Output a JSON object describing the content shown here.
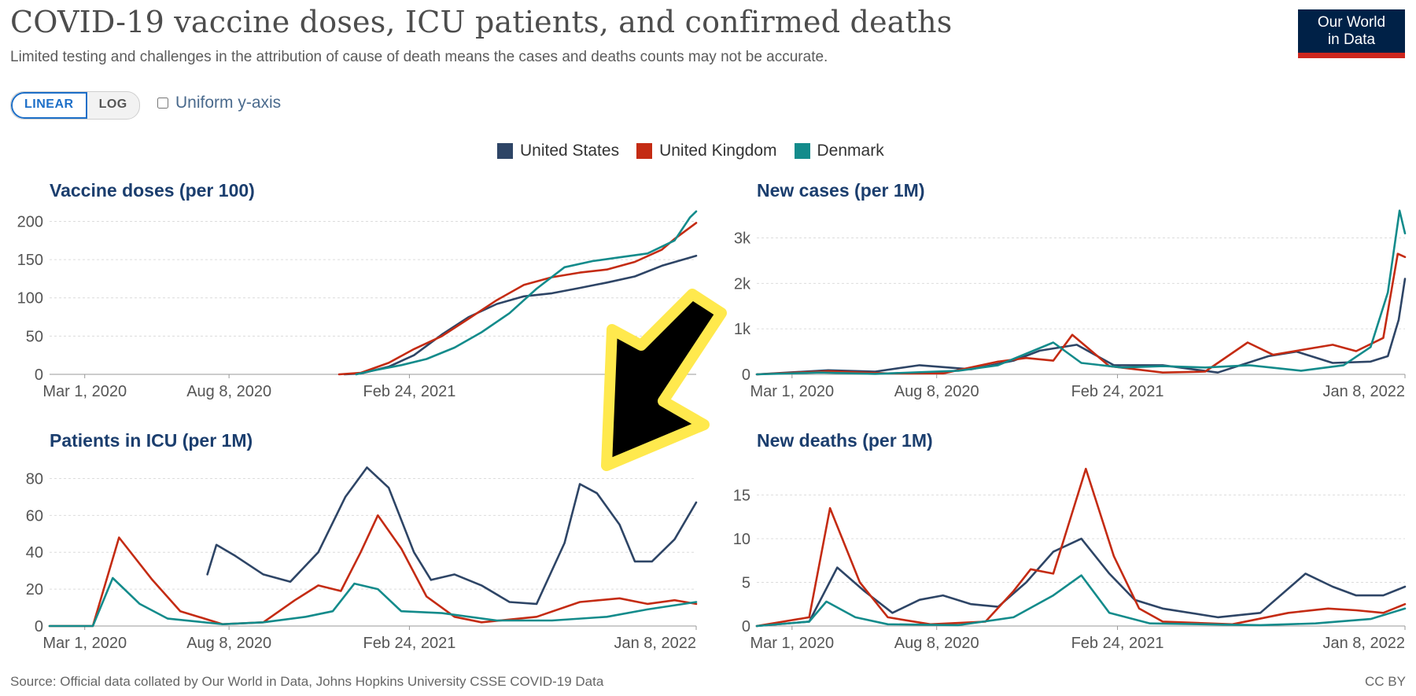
{
  "header": {
    "title": "COVID-19 vaccine doses, ICU patients, and confirmed deaths",
    "subtitle": "Limited testing and challenges in the attribution of cause of death means the cases and deaths counts may not be accurate.",
    "logo_line1": "Our World",
    "logo_line2": "in Data"
  },
  "controls": {
    "linear_label": "LINEAR",
    "log_label": "LOG",
    "uniform_label": "Uniform y-axis"
  },
  "legend": [
    {
      "name": "United States",
      "color": "#2e4566"
    },
    {
      "name": "United Kingdom",
      "color": "#c42b13"
    },
    {
      "name": "Denmark",
      "color": "#138b8b"
    }
  ],
  "footer": {
    "source": "Source: Official data collated by Our World in Data, Johns Hopkins University CSSE COVID-19 Data",
    "license": "CC BY"
  },
  "chart_data": [
    {
      "type": "line",
      "title": "Vaccine doses (per 100)",
      "xlabel": "",
      "ylabel": "",
      "x_ticks": [
        "Mar 1, 2020",
        "Aug 8, 2020",
        "Feb 24, 2021"
      ],
      "x_range": [
        "Jan 22, 2020",
        "Jan 8, 2022"
      ],
      "y_ticks": [
        "0",
        "50",
        "100",
        "150",
        "200"
      ],
      "ylim": [
        0,
        220
      ],
      "grid": true,
      "series": [
        {
          "name": "United States",
          "x": [
            "Dec 14, 2020",
            "Jan 1, 2021",
            "Feb 1, 2021",
            "Mar 1, 2021",
            "Apr 1, 2021",
            "May 1, 2021",
            "Jun 1, 2021",
            "Jul 1, 2021",
            "Aug 1, 2021",
            "Sep 1, 2021",
            "Oct 1, 2021",
            "Nov 1, 2021",
            "Dec 1, 2021",
            "Jan 8, 2022"
          ],
          "values": [
            0,
            1,
            10,
            25,
            52,
            75,
            92,
            102,
            106,
            113,
            120,
            128,
            142,
            155
          ]
        },
        {
          "name": "United Kingdom",
          "x": [
            "Dec 8, 2020",
            "Jan 1, 2021",
            "Feb 1, 2021",
            "Mar 1, 2021",
            "Apr 1, 2021",
            "May 1, 2021",
            "Jun 1, 2021",
            "Jul 1, 2021",
            "Aug 1, 2021",
            "Sep 1, 2021",
            "Oct 1, 2021",
            "Nov 1, 2021",
            "Dec 1, 2021",
            "Dec 15, 2021",
            "Jan 8, 2022"
          ],
          "values": [
            0,
            2,
            15,
            33,
            50,
            73,
            97,
            117,
            127,
            133,
            137,
            147,
            163,
            177,
            198
          ]
        },
        {
          "name": "Denmark",
          "x": [
            "Dec 27, 2020",
            "Jan 15, 2021",
            "Feb 15, 2021",
            "Mar 15, 2021",
            "Apr 15, 2021",
            "May 15, 2021",
            "Jun 15, 2021",
            "Jul 15, 2021",
            "Aug 15, 2021",
            "Sep 15, 2021",
            "Oct 15, 2021",
            "Nov 15, 2021",
            "Dec 15, 2021",
            "Jan 1, 2022",
            "Jan 8, 2022"
          ],
          "values": [
            0,
            5,
            12,
            20,
            35,
            55,
            80,
            112,
            140,
            148,
            153,
            158,
            175,
            205,
            213
          ]
        }
      ]
    },
    {
      "type": "line",
      "title": "New cases (per 1M)",
      "xlabel": "",
      "ylabel": "",
      "x_ticks": [
        "Mar 1, 2020",
        "Aug 8, 2020",
        "Feb 24, 2021",
        "Jan 8, 2022"
      ],
      "x_range": [
        "Jan 22, 2020",
        "Jan 8, 2022"
      ],
      "y_ticks": [
        "0",
        "1k",
        "2k",
        "3k"
      ],
      "ylim": [
        0,
        3700
      ],
      "grid": true,
      "series": [
        {
          "name": "United States",
          "x": [
            "Jan 22, 2020",
            "Apr 10, 2020",
            "Jun 1, 2020",
            "Jul 20, 2020",
            "Sep 15, 2020",
            "Nov 1, 2020",
            "Nov 30, 2020",
            "Jan 10, 2021",
            "Feb 20, 2021",
            "Apr 15, 2021",
            "Jun 15, 2021",
            "Aug 10, 2021",
            "Sep 10, 2021",
            "Oct 20, 2021",
            "Dec 1, 2021",
            "Dec 20, 2021",
            "Jan 1, 2022",
            "Jan 8, 2022"
          ],
          "values": [
            0,
            90,
            60,
            200,
            110,
            300,
            520,
            650,
            200,
            200,
            40,
            400,
            500,
            250,
            280,
            400,
            1200,
            2100
          ]
        },
        {
          "name": "United Kingdom",
          "x": [
            "Jan 22, 2020",
            "Apr 10, 2020",
            "Jun 15, 2020",
            "Aug 15, 2020",
            "Oct 15, 2020",
            "Nov 15, 2020",
            "Dec 15, 2020",
            "Jan 5, 2021",
            "Feb 15, 2021",
            "Apr 15, 2021",
            "Jun 1, 2021",
            "Jul 18, 2021",
            "Aug 15, 2021",
            "Oct 20, 2021",
            "Nov 15, 2021",
            "Dec 15, 2021",
            "Dec 31, 2021",
            "Jan 8, 2022"
          ],
          "values": [
            0,
            70,
            20,
            20,
            280,
            360,
            300,
            870,
            180,
            40,
            60,
            700,
            430,
            650,
            510,
            800,
            2650,
            2580
          ]
        },
        {
          "name": "Denmark",
          "x": [
            "Jan 22, 2020",
            "Apr 1, 2020",
            "Jun 1, 2020",
            "Sep 1, 2020",
            "Oct 15, 2020",
            "Dec 15, 2020",
            "Jan 15, 2021",
            "Mar 1, 2021",
            "Apr 15, 2021",
            "Jun 1, 2021",
            "Jul 20, 2021",
            "Sep 15, 2021",
            "Nov 1, 2021",
            "Dec 1, 2021",
            "Dec 20, 2021",
            "Jan 2, 2022",
            "Jan 8, 2022"
          ],
          "values": [
            0,
            40,
            10,
            80,
            200,
            700,
            250,
            150,
            180,
            150,
            200,
            80,
            200,
            600,
            1800,
            3600,
            3100
          ]
        }
      ]
    },
    {
      "type": "line",
      "title": "Patients in ICU (per 1M)",
      "xlabel": "",
      "ylabel": "",
      "x_ticks": [
        "Mar 1, 2020",
        "Aug 8, 2020",
        "Feb 24, 2021",
        "Jan 8, 2022"
      ],
      "x_range": [
        "Jan 22, 2020",
        "Jan 8, 2022"
      ],
      "y_ticks": [
        "0",
        "20",
        "40",
        "60",
        "80"
      ],
      "ylim": [
        0,
        90
      ],
      "grid": true,
      "series": [
        {
          "name": "United States",
          "x": [
            "Jul 15, 2020",
            "Jul 25, 2020",
            "Aug 15, 2020",
            "Sep 15, 2020",
            "Oct 15, 2020",
            "Nov 15, 2020",
            "Dec 15, 2020",
            "Jan 8, 2021",
            "Feb 1, 2021",
            "Mar 1, 2021",
            "Mar 20, 2021",
            "Apr 15, 2021",
            "May 15, 2021",
            "Jun 15, 2021",
            "Jul 15, 2021",
            "Aug 15, 2021",
            "Sep 1, 2021",
            "Sep 20, 2021",
            "Oct 15, 2021",
            "Nov 1, 2021",
            "Nov 20, 2021",
            "Dec 15, 2021",
            "Jan 8, 2022"
          ],
          "values": [
            28,
            44,
            38,
            28,
            24,
            40,
            70,
            86,
            75,
            40,
            25,
            28,
            22,
            13,
            12,
            45,
            77,
            72,
            55,
            35,
            35,
            47,
            67
          ]
        },
        {
          "name": "United Kingdom",
          "x": [
            "Jan 22, 2020",
            "Mar 10, 2020",
            "Apr 8, 2020",
            "May 15, 2020",
            "Jun 15, 2020",
            "Aug 1, 2020",
            "Sep 15, 2020",
            "Oct 20, 2020",
            "Nov 15, 2020",
            "Dec 10, 2020",
            "Jan 1, 2021",
            "Jan 20, 2021",
            "Feb 15, 2021",
            "Mar 15, 2021",
            "Apr 15, 2021",
            "May 15, 2021",
            "Jul 15, 2021",
            "Sep 1, 2021",
            "Oct 15, 2021",
            "Nov 15, 2021",
            "Dec 15, 2021",
            "Jan 8, 2022"
          ],
          "values": [
            0,
            0,
            48,
            25,
            8,
            1,
            2,
            14,
            22,
            19,
            40,
            60,
            42,
            16,
            5,
            2,
            5,
            13,
            15,
            12,
            14,
            12
          ]
        },
        {
          "name": "Denmark",
          "x": [
            "Jan 22, 2020",
            "Mar 10, 2020",
            "Apr 1, 2020",
            "May 1, 2020",
            "Jun 1, 2020",
            "Aug 1, 2020",
            "Sep 15, 2020",
            "Nov 1, 2020",
            "Dec 1, 2020",
            "Dec 25, 2020",
            "Jan 20, 2021",
            "Feb 15, 2021",
            "Apr 1, 2021",
            "Jun 1, 2021",
            "Aug 1, 2021",
            "Oct 1, 2021",
            "Nov 15, 2021",
            "Jan 8, 2022"
          ],
          "values": [
            0,
            0,
            26,
            12,
            4,
            1,
            2,
            5,
            8,
            23,
            20,
            8,
            7,
            3,
            3,
            5,
            9,
            13
          ]
        }
      ]
    },
    {
      "type": "line",
      "title": "New deaths (per 1M)",
      "xlabel": "",
      "ylabel": "",
      "x_ticks": [
        "Mar 1, 2020",
        "Aug 8, 2020",
        "Feb 24, 2021",
        "Jan 8, 2022"
      ],
      "x_range": [
        "Jan 22, 2020",
        "Jan 8, 2022"
      ],
      "y_ticks": [
        "0",
        "5",
        "10",
        "15"
      ],
      "ylim": [
        0,
        19
      ],
      "grid": true,
      "series": [
        {
          "name": "United States",
          "x": [
            "Jan 22, 2020",
            "Mar 20, 2020",
            "Apr 20, 2020",
            "May 20, 2020",
            "Jun 20, 2020",
            "Jul 20, 2020",
            "Aug 15, 2020",
            "Sep 15, 2020",
            "Oct 15, 2020",
            "Nov 15, 2020",
            "Dec 15, 2020",
            "Jan 15, 2021",
            "Feb 15, 2021",
            "Mar 15, 2021",
            "Apr 15, 2021",
            "Jun 15, 2021",
            "Aug 1, 2021",
            "Sep 20, 2021",
            "Oct 20, 2021",
            "Nov 15, 2021",
            "Dec 15, 2021",
            "Jan 8, 2022"
          ],
          "values": [
            0,
            0.5,
            6.7,
            4,
            1.5,
            3,
            3.5,
            2.5,
            2.2,
            5,
            8.5,
            10,
            6,
            3,
            2,
            1,
            1.5,
            6,
            4.5,
            3.5,
            3.5,
            4.5
          ]
        },
        {
          "name": "United Kingdom",
          "x": [
            "Jan 22, 2020",
            "Mar 20, 2020",
            "Apr 12, 2020",
            "May 15, 2020",
            "Jun 15, 2020",
            "Aug 1, 2020",
            "Oct 1, 2020",
            "Nov 1, 2020",
            "Nov 20, 2020",
            "Dec 15, 2020",
            "Jan 20, 2021",
            "Feb 20, 2021",
            "Mar 20, 2021",
            "Apr 15, 2021",
            "Jul 1, 2021",
            "Sep 1, 2021",
            "Oct 15, 2021",
            "Nov 15, 2021",
            "Dec 15, 2021",
            "Jan 8, 2022"
          ],
          "values": [
            0,
            1,
            13.5,
            5,
            1,
            0.2,
            0.5,
            4,
            6.5,
            6,
            18,
            8,
            2,
            0.5,
            0.2,
            1.5,
            2,
            1.8,
            1.5,
            2.5
          ]
        },
        {
          "name": "Denmark",
          "x": [
            "Jan 22, 2020",
            "Mar 20, 2020",
            "Apr 8, 2020",
            "May 10, 2020",
            "Jun 15, 2020",
            "Sep 1, 2020",
            "Nov 1, 2020",
            "Dec 15, 2020",
            "Jan 15, 2021",
            "Feb 15, 2021",
            "Apr 1, 2021",
            "Aug 1, 2021",
            "Oct 1, 2021",
            "Dec 1, 2021",
            "Jan 8, 2022"
          ],
          "values": [
            0,
            0.5,
            2.8,
            1,
            0.2,
            0.1,
            1,
            3.5,
            5.8,
            1.5,
            0.3,
            0.1,
            0.3,
            0.8,
            2
          ]
        }
      ]
    }
  ]
}
